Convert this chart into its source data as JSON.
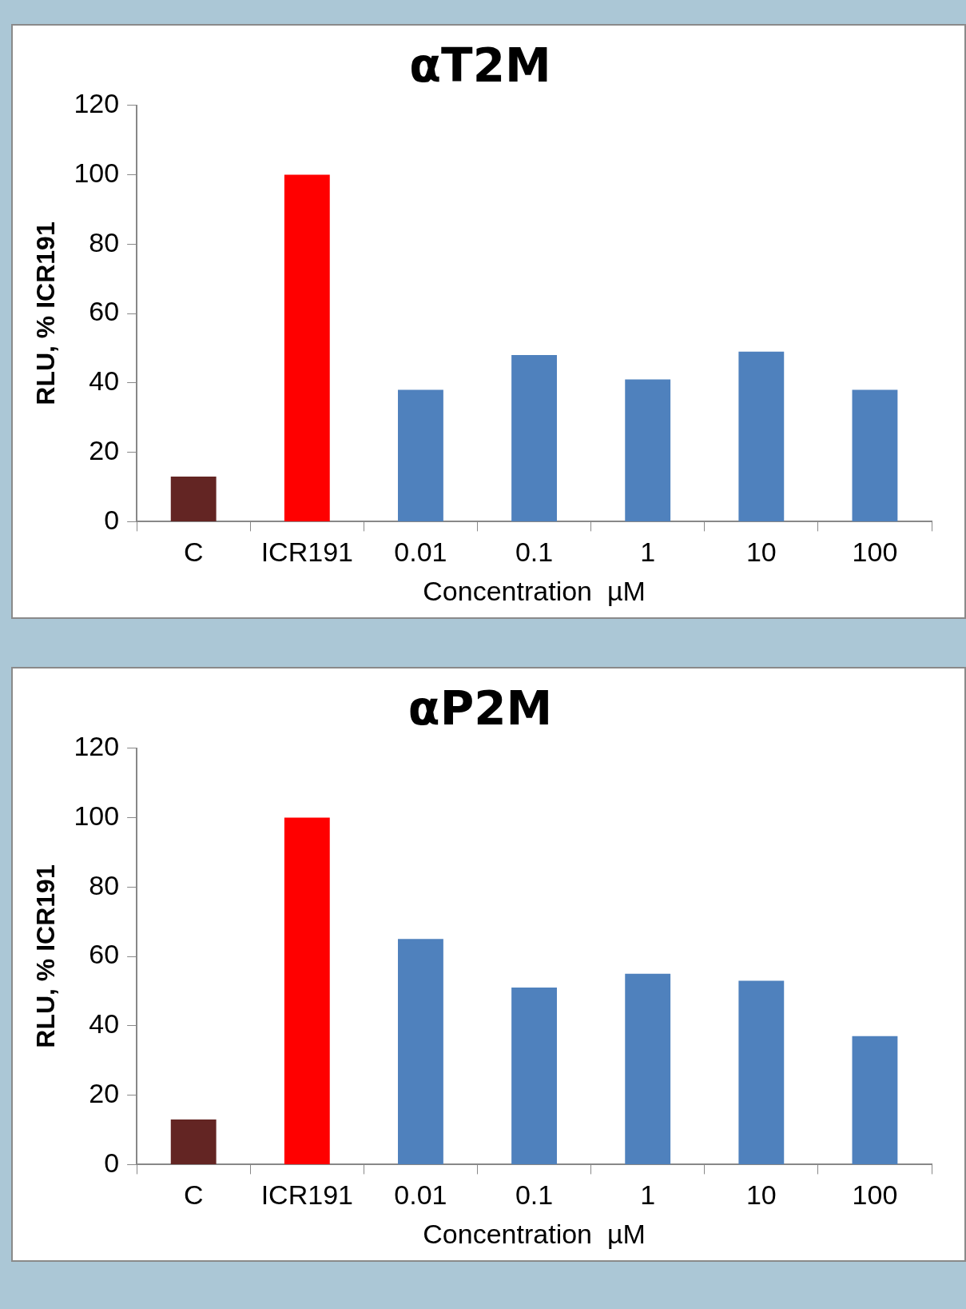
{
  "chart_data": [
    {
      "type": "bar",
      "title": "αT2M",
      "xlabel": "Concentration  µM",
      "ylabel": "RLU, % ICR191",
      "categories": [
        "C",
        "ICR191",
        "0.01",
        "0.1",
        "1",
        "10",
        "100"
      ],
      "values": [
        13,
        100,
        38,
        48,
        41,
        49,
        38
      ],
      "colors": [
        "#632523",
        "#ff0000",
        "#4f81bd",
        "#4f81bd",
        "#4f81bd",
        "#4f81bd",
        "#4f81bd"
      ],
      "ylim": [
        0,
        120
      ],
      "yticks": [
        0,
        20,
        40,
        60,
        80,
        100,
        120
      ]
    },
    {
      "type": "bar",
      "title": "αP2M",
      "xlabel": "Concentration  µM",
      "ylabel": "RLU, % ICR191",
      "categories": [
        "C",
        "ICR191",
        "0.01",
        "0.1",
        "1",
        "10",
        "100"
      ],
      "values": [
        13,
        100,
        65,
        51,
        55,
        53,
        37
      ],
      "colors": [
        "#632523",
        "#ff0000",
        "#4f81bd",
        "#4f81bd",
        "#4f81bd",
        "#4f81bd",
        "#4f81bd"
      ],
      "ylim": [
        0,
        120
      ],
      "yticks": [
        0,
        20,
        40,
        60,
        80,
        100,
        120
      ]
    }
  ]
}
